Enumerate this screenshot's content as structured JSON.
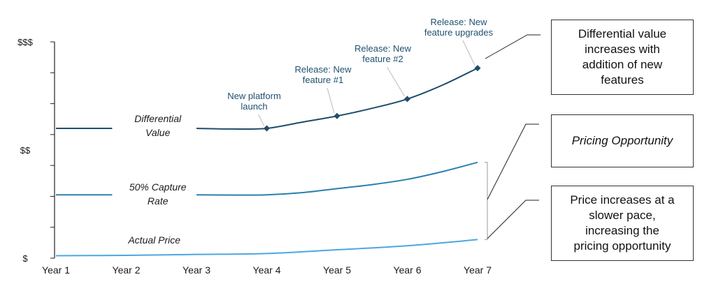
{
  "chart_data": {
    "type": "line",
    "categories": [
      "Year 1",
      "Year 2",
      "Year 3",
      "Year 4",
      "Year 5",
      "Year 6",
      "Year 7"
    ],
    "y_tick_labels": [
      {
        "value": 0,
        "label": "$"
      },
      {
        "value": 3.5,
        "label": "$$"
      },
      {
        "value": 7,
        "label": "$$$"
      }
    ],
    "ylim": [
      0,
      7
    ],
    "grid": false,
    "series": [
      {
        "name": "Differential\nValue",
        "color": "#1f4e6b",
        "x": [
          1,
          1.8,
          3,
          3.5,
          4,
          4.5,
          5,
          5.5,
          6,
          6.5,
          7
        ],
        "values": [
          4.2,
          4.2,
          4.2,
          4.18,
          4.2,
          4.4,
          4.6,
          4.85,
          5.15,
          5.6,
          6.15
        ]
      },
      {
        "name": "50% Capture\nRate",
        "color": "#2a7fb0",
        "x": [
          1,
          1.8,
          3,
          3.5,
          4,
          4.5,
          5,
          5.5,
          6,
          6.5,
          7
        ],
        "values": [
          2.05,
          2.05,
          2.05,
          2.04,
          2.05,
          2.12,
          2.25,
          2.38,
          2.55,
          2.8,
          3.1
        ]
      },
      {
        "name": "Actual Price",
        "color": "#4aa8e0",
        "x": [
          1,
          2,
          3,
          4,
          5,
          6,
          7
        ],
        "values": [
          0.08,
          0.09,
          0.12,
          0.15,
          0.27,
          0.4,
          0.6
        ]
      }
    ],
    "annotations": [
      {
        "text": "New platform\nlaunch",
        "x": 4,
        "y": 4.2
      },
      {
        "text": "Release: New\nfeature #1",
        "x": 5,
        "y": 4.6
      },
      {
        "text": "Release: New\nfeature #2",
        "x": 6,
        "y": 5.15
      },
      {
        "text": "Release: New\nfeature upgrades",
        "x": 7,
        "y": 6.15
      }
    ]
  },
  "callouts": {
    "differential": "Differential value\nincreases with\naddition of new\nfeatures",
    "opportunity": "Pricing Opportunity",
    "price": "Price increases at a\nslower pace,\nincreasing the\npricing opportunity"
  }
}
